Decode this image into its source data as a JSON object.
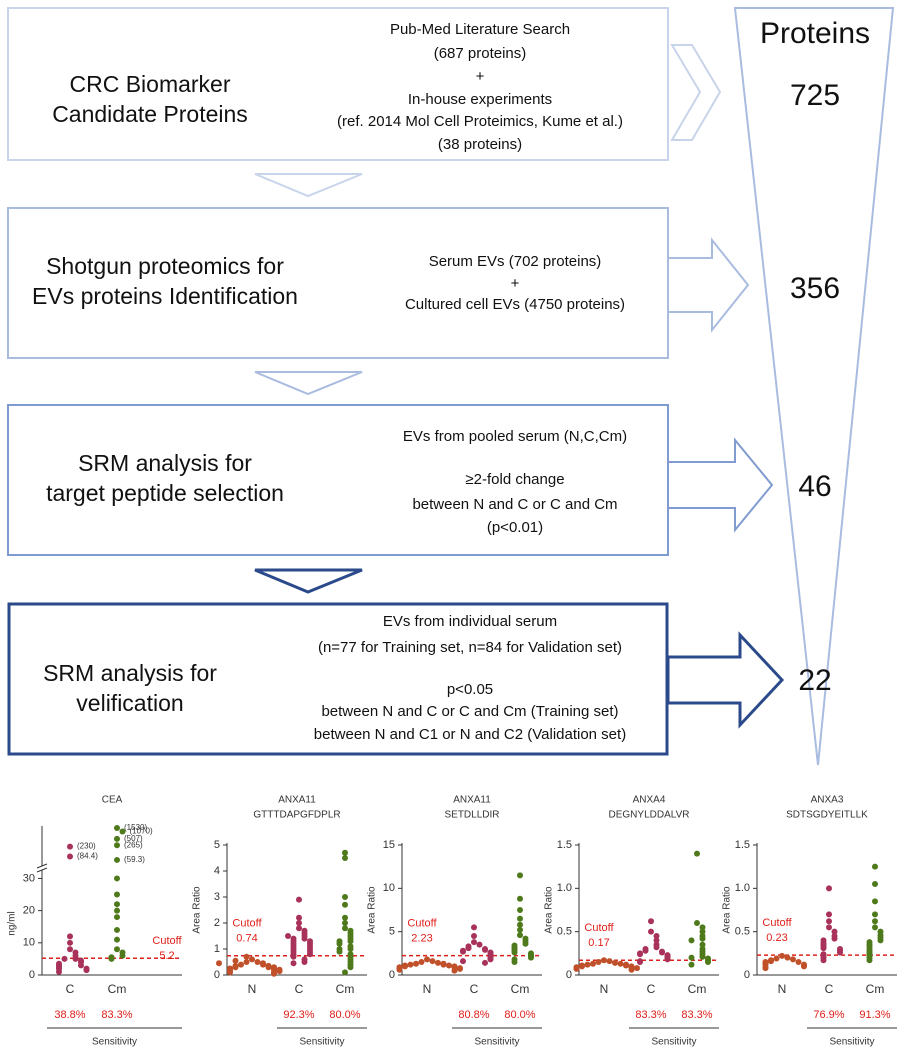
{
  "flow": {
    "header": "Proteins",
    "steps": [
      {
        "title": [
          "CRC Biomarker",
          "Candidate Proteins"
        ],
        "details": [
          "Pub-Med Literature Search",
          "(687 proteins)",
          "+",
          "In-house experiments",
          "(ref. 2014 Mol Cell Proteimics, Kume et al.)",
          "(38 proteins)"
        ],
        "count": 725
      },
      {
        "title": [
          "Shotgun proteomics for",
          "EVs proteins Identification"
        ],
        "details": [
          "Serum EVs  (702 proteins)",
          "+",
          "Cultured cell  EVs (4750 proteins)"
        ],
        "count": 356
      },
      {
        "title": [
          "SRM analysis for",
          "target peptide selection"
        ],
        "details": [
          "EVs from pooled serum (N,C,Cm)",
          "≥2-fold change",
          "between N and C or C and Cm",
          "(p<0.01)"
        ],
        "count": 46
      },
      {
        "title": [
          "SRM analysis for",
          "velification"
        ],
        "details": [
          "EVs from individual serum",
          "(n=77 for Training set, n=84 for Validation set)",
          "p<0.05",
          "between N and C or C and Cm (Training set)",
          "between N and C1 or N and C2 (Validation set)"
        ],
        "count": 22
      }
    ]
  },
  "chart_data": [
    {
      "type": "strip",
      "title": [
        "CEA"
      ],
      "ylabel": "ng/ml",
      "ylim": [
        0,
        32
      ],
      "yticks": [
        0,
        10,
        20,
        30
      ],
      "cutoff_label": "Cutoff",
      "cutoff": 5.2,
      "sensitivity_label": "Sensitivity",
      "series": [
        {
          "name": "C",
          "color": "#a8325a",
          "values": [
            230,
            84.4,
            12,
            10,
            8,
            7,
            6,
            5,
            5,
            4.5,
            4,
            3.5,
            3,
            3,
            2.5,
            2,
            2,
            1.5,
            1
          ],
          "value_labels": [
            "(230)",
            "(84.4)",
            null,
            null,
            null,
            null,
            null,
            null,
            null,
            null,
            null,
            null,
            null,
            null,
            null,
            null,
            null,
            null,
            null
          ],
          "sensitivity": 38.8,
          "sensitivity_text": "38.8%"
        },
        {
          "name": "Cm",
          "color": "#4f7a1c",
          "values": [
            1530,
            1070,
            507,
            265,
            59.3,
            30,
            25,
            22,
            20,
            18,
            14,
            11,
            8,
            7,
            6,
            5.5,
            5
          ],
          "value_labels": [
            "(1530)",
            "(1070)",
            "(507)",
            "(265)",
            "(59.3)",
            null,
            null,
            null,
            null,
            null,
            null,
            null,
            null,
            null,
            null,
            null,
            null
          ],
          "sensitivity": 83.3,
          "sensitivity_text": "83.3%"
        }
      ]
    },
    {
      "type": "strip",
      "title": [
        "ANXA11",
        "GTTTDAPGFDPLR"
      ],
      "ylabel": "Area Ratio",
      "ylim": [
        0,
        5
      ],
      "yticks": [
        0,
        1,
        2,
        3,
        4,
        5
      ],
      "cutoff_label": "Cutoff",
      "cutoff": 0.74,
      "sensitivity_label": "Sensitivity",
      "series": [
        {
          "name": "N",
          "color": "#c0502a",
          "values": [
            0.6,
            0.5,
            0.5,
            0.45,
            0.4,
            0.4,
            0.35,
            0.35,
            0.3,
            0.3,
            0.3,
            0.25,
            0.25,
            0.2,
            0.2,
            0.2,
            0.15,
            0.15,
            0.1,
            0.1,
            0.55,
            0.7,
            0.45,
            0.05
          ]
        },
        {
          "name": "C",
          "color": "#a8325a",
          "values": [
            2.9,
            2.2,
            2.0,
            1.8,
            1.7,
            1.6,
            1.5,
            1.4,
            1.4,
            1.3,
            1.3,
            1.2,
            1.2,
            1.1,
            1.1,
            1.0,
            1.0,
            0.9,
            0.9,
            0.8,
            0.8,
            0.7,
            0.6,
            0.5,
            0.45,
            1.5
          ],
          "sensitivity": 92.3,
          "sensitivity_text": "92.3%"
        },
        {
          "name": "Cm",
          "color": "#4f7a1c",
          "values": [
            4.7,
            4.5,
            3.0,
            2.7,
            2.2,
            2.0,
            1.8,
            1.7,
            1.6,
            1.5,
            1.4,
            1.3,
            1.3,
            1.2,
            1.1,
            1.0,
            1.0,
            0.9,
            0.8,
            0.7,
            0.6,
            0.5,
            0.4,
            0.3,
            0.1
          ],
          "sensitivity": 80.0,
          "sensitivity_text": "80.0%"
        }
      ]
    },
    {
      "type": "strip",
      "title": [
        "ANXA11",
        "SETDLLDIR"
      ],
      "ylabel": "Area Ratio",
      "ylim": [
        0,
        15
      ],
      "yticks": [
        0,
        5,
        10,
        15
      ],
      "cutoff_label": "Cutoff",
      "cutoff": 2.23,
      "sensitivity_label": "Sensitivity",
      "series": [
        {
          "name": "N",
          "color": "#c0502a",
          "values": [
            1.8,
            1.6,
            1.5,
            1.4,
            1.3,
            1.3,
            1.2,
            1.2,
            1.1,
            1.1,
            1.0,
            1.0,
            0.9,
            0.9,
            0.8,
            0.8,
            0.7,
            0.7,
            0.6,
            0.5
          ]
        },
        {
          "name": "C",
          "color": "#a8325a",
          "values": [
            5.5,
            4.5,
            3.8,
            3.5,
            3.3,
            3.1,
            3.0,
            2.9,
            2.8,
            2.7,
            2.6,
            2.5,
            2.4,
            2.3,
            2.2,
            2.1,
            2.0,
            1.9,
            1.8,
            1.6,
            1.4
          ],
          "sensitivity": 80.8,
          "sensitivity_text": "80.8%"
        },
        {
          "name": "Cm",
          "color": "#4f7a1c",
          "values": [
            11.5,
            8.8,
            7.5,
            6.5,
            5.8,
            5.2,
            4.6,
            4.2,
            3.9,
            3.6,
            3.4,
            3.2,
            3.0,
            2.8,
            2.6,
            2.5,
            2.4,
            2.2,
            2.0,
            1.8,
            1.5
          ],
          "sensitivity": 80.0,
          "sensitivity_text": "80.0%"
        }
      ]
    },
    {
      "type": "strip",
      "title": [
        "ANXA4",
        "DEGNYLDDALVR"
      ],
      "ylabel": "Area Ratio",
      "ylim": [
        0,
        1.5
      ],
      "yticks": [
        0,
        0.5,
        {
          "value": 1,
          "label": "1.0"
        },
        1.5
      ],
      "cutoff_label": "Cutoff",
      "cutoff": 0.17,
      "sensitivity_label": "Sensitivity",
      "series": [
        {
          "name": "N",
          "color": "#c0502a",
          "values": [
            0.17,
            0.16,
            0.15,
            0.14,
            0.13,
            0.13,
            0.12,
            0.12,
            0.11,
            0.11,
            0.1,
            0.1,
            0.09,
            0.09,
            0.08,
            0.08,
            0.07,
            0.06
          ]
        },
        {
          "name": "C",
          "color": "#a8325a",
          "values": [
            0.62,
            0.5,
            0.45,
            0.4,
            0.35,
            0.32,
            0.3,
            0.28,
            0.27,
            0.26,
            0.25,
            0.24,
            0.23,
            0.22,
            0.21,
            0.2,
            0.19,
            0.18,
            0.16,
            0.15
          ],
          "sensitivity": 83.3,
          "sensitivity_text": "83.3%"
        },
        {
          "name": "Cm",
          "color": "#4f7a1c",
          "values": [
            1.4,
            0.6,
            0.55,
            0.5,
            0.45,
            0.42,
            0.4,
            0.35,
            0.3,
            0.27,
            0.24,
            0.21,
            0.2,
            0.19,
            0.17,
            0.15,
            0.12
          ],
          "sensitivity": 83.3,
          "sensitivity_text": "83.3%"
        }
      ]
    },
    {
      "type": "strip",
      "title": [
        "ANXA3",
        "SDTSGDYEITLLK"
      ],
      "ylabel": "Area Ratio",
      "ylim": [
        0,
        1.5
      ],
      "yticks": [
        0,
        0.5,
        {
          "value": 1,
          "label": "1.0"
        },
        1.5
      ],
      "cutoff_label": "Cutoff",
      "cutoff": 0.23,
      "sensitivity_label": "Sensitivity",
      "series": [
        {
          "name": "N",
          "color": "#c0502a",
          "values": [
            0.22,
            0.2,
            0.19,
            0.18,
            0.17,
            0.16,
            0.15,
            0.15,
            0.14,
            0.13,
            0.12,
            0.12,
            0.11,
            0.1,
            0.09,
            0.08
          ]
        },
        {
          "name": "C",
          "color": "#a8325a",
          "values": [
            1.0,
            0.7,
            0.62,
            0.55,
            0.5,
            0.45,
            0.42,
            0.4,
            0.37,
            0.35,
            0.33,
            0.31,
            0.3,
            0.28,
            0.26,
            0.24,
            0.22,
            0.2,
            0.17
          ],
          "sensitivity": 76.9,
          "sensitivity_text": "76.9%"
        },
        {
          "name": "Cm",
          "color": "#4f7a1c",
          "values": [
            1.25,
            1.05,
            0.85,
            0.7,
            0.62,
            0.55,
            0.5,
            0.46,
            0.43,
            0.4,
            0.38,
            0.35,
            0.33,
            0.3,
            0.28,
            0.26,
            0.24,
            0.22,
            0.2,
            0.17
          ],
          "sensitivity": 91.3,
          "sensitivity_text": "91.3%"
        }
      ]
    }
  ]
}
